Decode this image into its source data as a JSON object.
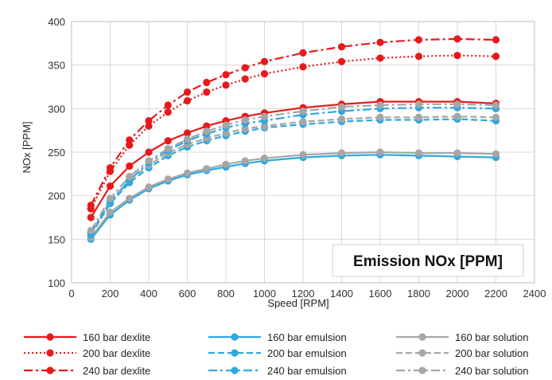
{
  "chart_data": {
    "type": "line",
    "xlabel": "Speed [RPM]",
    "ylabel": "NOx [PPM]",
    "xlim": [
      0,
      2400
    ],
    "ylim": [
      100,
      400
    ],
    "x_ticks": [
      0,
      200,
      400,
      600,
      800,
      1000,
      1200,
      1400,
      1600,
      1800,
      2000,
      2200,
      2400
    ],
    "y_ticks": [
      100,
      150,
      200,
      250,
      300,
      350,
      400
    ],
    "grid": "vertical and horizontal",
    "legend_position": "bottom",
    "annotation": "Emission NOx [PPM]",
    "x": [
      100,
      200,
      300,
      400,
      500,
      600,
      700,
      800,
      900,
      1000,
      1200,
      1400,
      1600,
      1800,
      2000,
      2200
    ],
    "series": [
      {
        "name": "160 bar dexlite",
        "color": "#e8191b",
        "dash": "solid",
        "values": [
          175,
          211,
          234,
          250,
          263,
          272,
          280,
          286,
          291,
          295,
          301,
          305,
          308,
          308,
          308,
          306
        ]
      },
      {
        "name": "160 bar emulsion",
        "color": "#2ea8e0",
        "dash": "solid",
        "values": [
          150,
          178,
          195,
          208,
          217,
          224,
          229,
          233,
          237,
          240,
          244,
          246,
          247,
          246,
          245,
          244
        ]
      },
      {
        "name": "160 bar solution",
        "color": "#a6a6a6",
        "dash": "solid",
        "values": [
          152,
          181,
          197,
          210,
          219,
          226,
          231,
          236,
          240,
          243,
          247,
          249,
          250,
          249,
          249,
          248
        ]
      },
      {
        "name": "200 bar dexlite",
        "color": "#e8191b",
        "dash": "dot",
        "values": [
          185,
          228,
          258,
          280,
          296,
          309,
          319,
          327,
          334,
          340,
          348,
          354,
          358,
          360,
          361,
          360
        ]
      },
      {
        "name": "200 bar emulsion",
        "color": "#2ea8e0",
        "dash": "dash",
        "values": [
          155,
          191,
          215,
          232,
          246,
          256,
          263,
          269,
          274,
          278,
          282,
          285,
          287,
          287,
          288,
          286
        ]
      },
      {
        "name": "200 bar solution",
        "color": "#a6a6a6",
        "dash": "dash",
        "values": [
          157,
          194,
          218,
          235,
          249,
          259,
          266,
          272,
          277,
          280,
          285,
          288,
          290,
          290,
          291,
          290
        ]
      },
      {
        "name": "240 bar dexlite",
        "color": "#e8191b",
        "dash": "dashdot",
        "values": [
          189,
          232,
          264,
          286,
          304,
          319,
          330,
          339,
          347,
          354,
          364,
          371,
          376,
          379,
          380,
          379
        ]
      },
      {
        "name": "240 bar emulsion",
        "color": "#2ea8e0",
        "dash": "dashdot",
        "values": [
          157,
          192,
          218,
          238,
          252,
          263,
          271,
          278,
          283,
          286,
          293,
          297,
          300,
          301,
          301,
          300
        ]
      },
      {
        "name": "240 bar solution",
        "color": "#a6a6a6",
        "dash": "dashdot",
        "values": [
          160,
          197,
          222,
          240,
          254,
          265,
          274,
          281,
          287,
          291,
          297,
          302,
          304,
          305,
          305,
          304
        ]
      }
    ]
  }
}
